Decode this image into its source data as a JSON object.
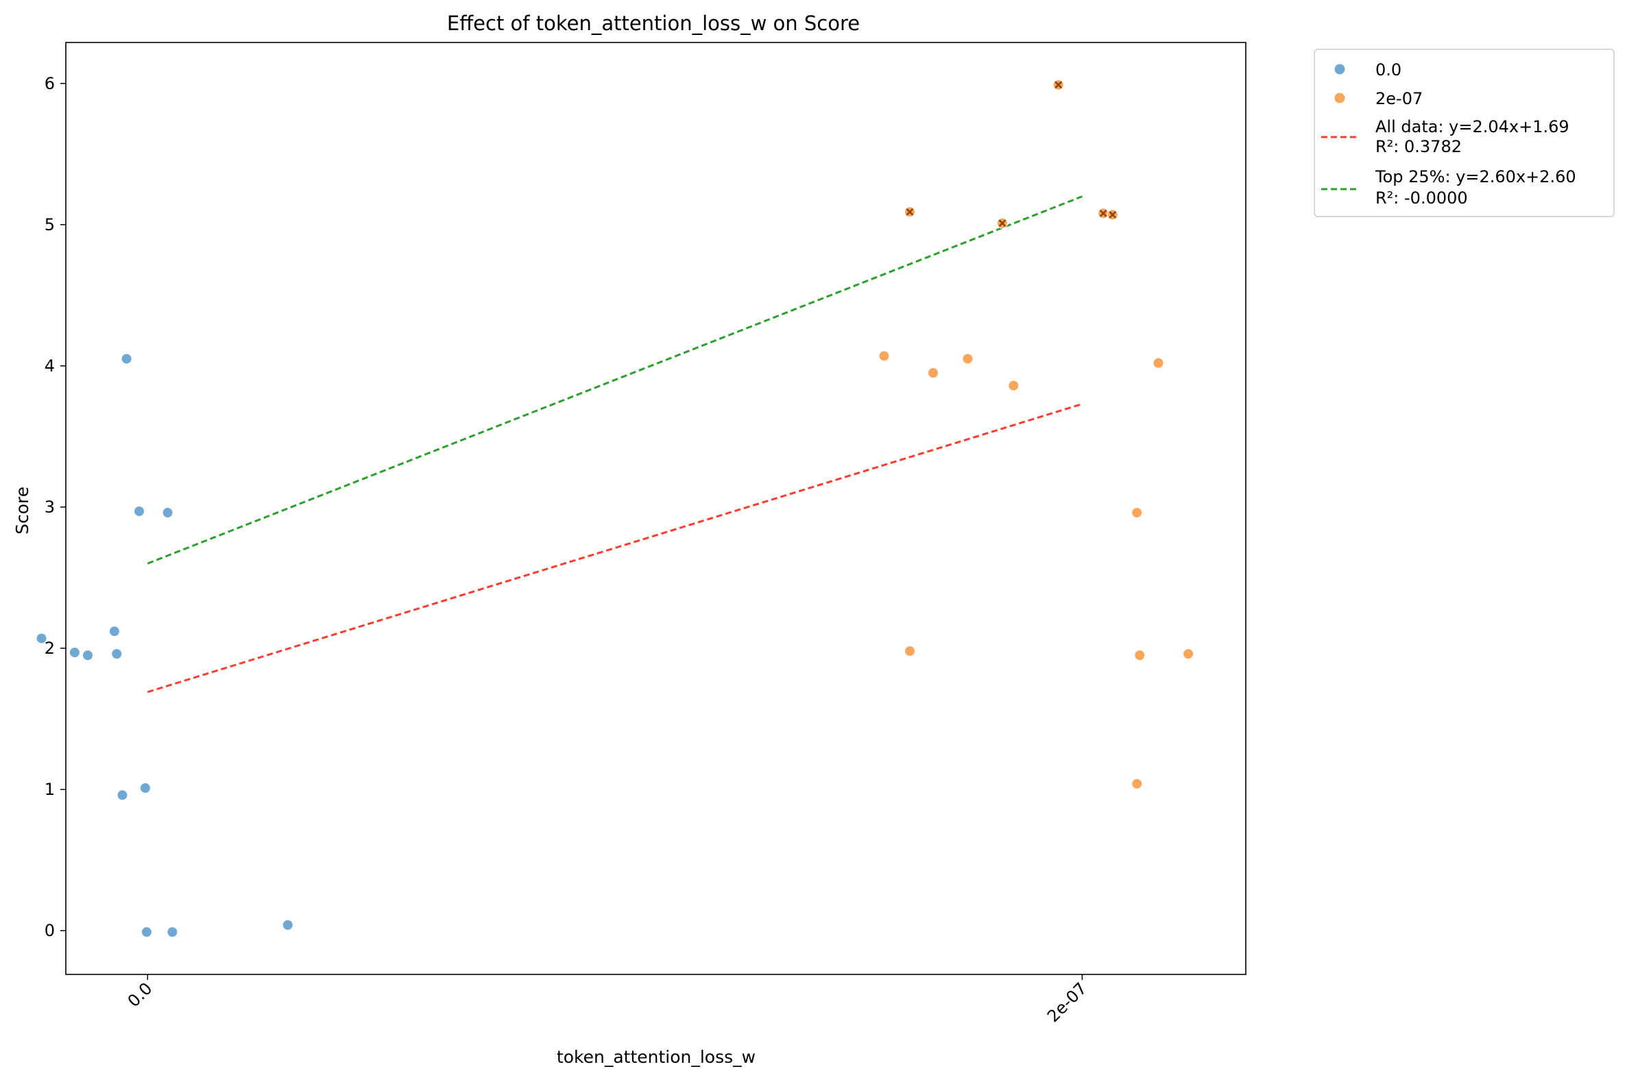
{
  "chart_data": {
    "type": "scatter",
    "title": "Effect of token_attention_loss_w on Score",
    "xlabel": "token_attention_loss_w",
    "ylabel": "Score",
    "xlim": [
      -1.75e-08,
      2.35e-07
    ],
    "ylim": [
      -0.31,
      6.29
    ],
    "x_ticks": [
      {
        "value": 0,
        "label": "0.0"
      },
      {
        "value": 2e-07,
        "label": "2e-07"
      }
    ],
    "y_ticks": [
      0,
      1,
      2,
      3,
      4,
      5,
      6
    ],
    "grid": false,
    "legend_position": "outside-top-right",
    "series": [
      {
        "name": "0.0",
        "color": "#6fa8d2",
        "points": [
          {
            "x": -2.27e-08,
            "y": 2.07
          },
          {
            "x": -1.56e-08,
            "y": 1.97
          },
          {
            "x": -1.28e-08,
            "y": 1.95
          },
          {
            "x": -7.1e-09,
            "y": 2.12
          },
          {
            "x": -6.6e-09,
            "y": 1.96
          },
          {
            "x": -4.5e-09,
            "y": 4.05
          },
          {
            "x": -5.4e-09,
            "y": 0.96
          },
          {
            "x": -1.8e-09,
            "y": 2.97
          },
          {
            "x": 4.3e-09,
            "y": 2.96
          },
          {
            "x": -5e-10,
            "y": 1.01
          },
          {
            "x": -2e-10,
            "y": -0.01
          },
          {
            "x": 5.3e-09,
            "y": -0.01
          },
          {
            "x": 3e-08,
            "y": 0.04
          }
        ]
      },
      {
        "name": "2e-07",
        "color": "#f9a65a",
        "points": [
          {
            "x": 1.576e-07,
            "y": 4.07
          },
          {
            "x": 1.631e-07,
            "y": 5.09
          },
          {
            "x": 1.631e-07,
            "y": 1.98
          },
          {
            "x": 1.681e-07,
            "y": 3.95
          },
          {
            "x": 1.755e-07,
            "y": 4.05
          },
          {
            "x": 1.829e-07,
            "y": 5.01
          },
          {
            "x": 1.853e-07,
            "y": 3.86
          },
          {
            "x": 1.949e-07,
            "y": 5.99
          },
          {
            "x": 2.045e-07,
            "y": 5.08
          },
          {
            "x": 2.065e-07,
            "y": 5.07
          },
          {
            "x": 2.117e-07,
            "y": 2.96
          },
          {
            "x": 2.123e-07,
            "y": 1.95
          },
          {
            "x": 2.163e-07,
            "y": 4.02
          },
          {
            "x": 2.227e-07,
            "y": 1.96
          },
          {
            "x": 2.117e-07,
            "y": 1.04
          }
        ]
      }
    ],
    "highlighted_points": {
      "marker": "x",
      "color": "#8b4513",
      "points": [
        {
          "x": 1.631e-07,
          "y": 5.09
        },
        {
          "x": 1.829e-07,
          "y": 5.01
        },
        {
          "x": 1.949e-07,
          "y": 5.99
        },
        {
          "x": 2.045e-07,
          "y": 5.08
        },
        {
          "x": 2.065e-07,
          "y": 5.07
        }
      ]
    },
    "fit_lines": [
      {
        "name": "All data: y=2.04x+1.69",
        "r2_label": "R²: 0.3782",
        "color": "#ff3b30",
        "from": {
          "x": 0,
          "y": 1.69
        },
        "to": {
          "x": 2e-07,
          "y": 3.73
        }
      },
      {
        "name": "Top 25%: y=2.60x+2.60",
        "r2_label": "R²: -0.0000",
        "color": "#2ca02c",
        "from": {
          "x": 0,
          "y": 2.6
        },
        "to": {
          "x": 2e-07,
          "y": 5.2
        }
      }
    ]
  }
}
